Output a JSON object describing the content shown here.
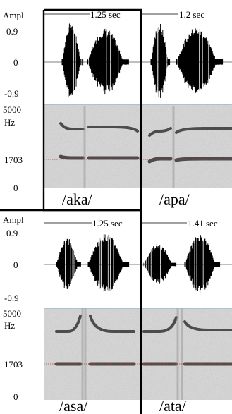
{
  "axis": {
    "amp_title": "Ampl",
    "amp_max": "0.9",
    "amp_zero": "0",
    "amp_min": "-0.9",
    "freq_top": "5000",
    "freq_unit": "Hz",
    "freq_mid": "1703",
    "freq_zero": "0"
  },
  "panels": [
    {
      "word": "/aka/",
      "duration": "1.25 sec"
    },
    {
      "word": "/apa/",
      "duration": "1.2 sec"
    },
    {
      "word": "/asa/",
      "duration": "1.25 sec"
    },
    {
      "word": "/ata/",
      "duration": "1.41 sec"
    }
  ],
  "colors": {
    "waveform": "#000000",
    "spectrogram_bg": "#d9d9d9",
    "formant_dark": "#2b2b2b",
    "reference_line": "#c0392b",
    "separator_line": "#7fb6d6"
  }
}
